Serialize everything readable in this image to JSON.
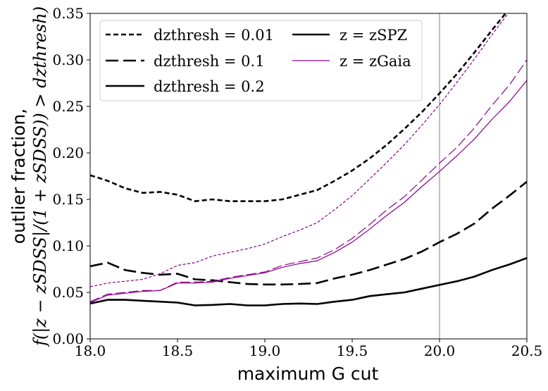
{
  "chart_data": {
    "type": "line",
    "xlabel": "maximum G cut",
    "ylabel_line1": "outlier fraction,",
    "ylabel_line2": "f(|z − zSDSS|/(1 + zSDSS)) > dzthresh)",
    "xlim": [
      18.0,
      20.5
    ],
    "ylim": [
      0.0,
      0.35
    ],
    "x_ticks": [
      "18.0",
      "18.5",
      "19.0",
      "19.5",
      "20.0",
      "20.5"
    ],
    "y_ticks": [
      "0.00",
      "0.05",
      "0.10",
      "0.15",
      "0.20",
      "0.25",
      "0.30",
      "0.35"
    ],
    "vline_x": 20.0,
    "vline_color": "#808080",
    "legend_placement": "top",
    "legend": [
      {
        "label": "dzthresh = 0.01",
        "style": "dotted",
        "color": "#000000"
      },
      {
        "label": "dzthresh = 0.1",
        "style": "dashed",
        "color": "#000000"
      },
      {
        "label": "dzthresh = 0.2",
        "style": "solid",
        "color": "#000000"
      },
      {
        "label": "z = zSPZ",
        "style": "solid-thick",
        "color": "#000000"
      },
      {
        "label": "z = zGaia",
        "style": "solid-thin",
        "color": "#8B008B"
      }
    ],
    "series": [
      {
        "method": "SPZ",
        "dz": 0.01,
        "color": "#000000",
        "x": [
          18.0,
          18.1,
          18.2,
          18.3,
          18.4,
          18.5,
          18.6,
          18.7,
          18.8,
          18.9,
          19.0,
          19.1,
          19.2,
          19.3,
          19.4,
          19.5,
          19.6,
          19.7,
          19.8,
          19.9,
          20.0,
          20.1,
          20.2,
          20.3,
          20.4
        ],
        "y": [
          0.176,
          0.17,
          0.162,
          0.157,
          0.158,
          0.155,
          0.148,
          0.15,
          0.148,
          0.148,
          0.148,
          0.15,
          0.155,
          0.16,
          0.17,
          0.181,
          0.194,
          0.209,
          0.226,
          0.244,
          0.264,
          0.285,
          0.308,
          0.332,
          0.355
        ]
      },
      {
        "method": "SPZ",
        "dz": 0.1,
        "color": "#000000",
        "x": [
          18.0,
          18.1,
          18.2,
          18.3,
          18.4,
          18.5,
          18.6,
          18.7,
          18.8,
          18.9,
          19.0,
          19.1,
          19.2,
          19.3,
          19.4,
          19.5,
          19.6,
          19.7,
          19.8,
          19.9,
          20.0,
          20.1,
          20.2,
          20.3,
          20.4,
          20.5
        ],
        "y": [
          0.078,
          0.082,
          0.074,
          0.071,
          0.069,
          0.07,
          0.064,
          0.063,
          0.061,
          0.059,
          0.0585,
          0.0585,
          0.059,
          0.06,
          0.065,
          0.069,
          0.074,
          0.08,
          0.086,
          0.094,
          0.104,
          0.113,
          0.124,
          0.14,
          0.154,
          0.169
        ]
      },
      {
        "method": "SPZ",
        "dz": 0.2,
        "color": "#000000",
        "x": [
          18.0,
          18.1,
          18.2,
          18.3,
          18.4,
          18.5,
          18.6,
          18.7,
          18.8,
          18.9,
          19.0,
          19.1,
          19.2,
          19.3,
          19.4,
          19.5,
          19.6,
          19.7,
          19.8,
          19.9,
          20.0,
          20.1,
          20.2,
          20.3,
          20.4,
          20.5
        ],
        "y": [
          0.038,
          0.042,
          0.042,
          0.041,
          0.04,
          0.039,
          0.036,
          0.0365,
          0.0375,
          0.036,
          0.036,
          0.0375,
          0.038,
          0.0375,
          0.04,
          0.042,
          0.046,
          0.048,
          0.05,
          0.054,
          0.058,
          0.062,
          0.067,
          0.074,
          0.08,
          0.087
        ]
      },
      {
        "method": "Gaia",
        "dz": 0.01,
        "color": "#8B008B",
        "x": [
          18.0,
          18.1,
          18.2,
          18.3,
          18.4,
          18.5,
          18.6,
          18.7,
          18.8,
          18.9,
          19.0,
          19.1,
          19.2,
          19.3,
          19.4,
          19.5,
          19.6,
          19.7,
          19.8,
          19.9,
          20.0,
          20.1,
          20.2,
          20.3,
          20.4
        ],
        "y": [
          0.056,
          0.06,
          0.062,
          0.064,
          0.07,
          0.079,
          0.082,
          0.089,
          0.093,
          0.097,
          0.102,
          0.11,
          0.117,
          0.125,
          0.139,
          0.154,
          0.172,
          0.19,
          0.209,
          0.23,
          0.252,
          0.276,
          0.301,
          0.327,
          0.352
        ]
      },
      {
        "method": "Gaia",
        "dz": 0.1,
        "color": "#8B008B",
        "x": [
          18.0,
          18.1,
          18.2,
          18.3,
          18.4,
          18.5,
          18.6,
          18.7,
          18.8,
          18.9,
          19.0,
          19.1,
          19.2,
          19.3,
          19.4,
          19.5,
          19.6,
          19.7,
          19.8,
          19.9,
          20.0,
          20.1,
          20.2,
          20.3,
          20.4,
          20.5
        ],
        "y": [
          0.04,
          0.048,
          0.05,
          0.052,
          0.052,
          0.061,
          0.061,
          0.062,
          0.066,
          0.069,
          0.072,
          0.079,
          0.083,
          0.087,
          0.096,
          0.108,
          0.123,
          0.139,
          0.153,
          0.171,
          0.189,
          0.206,
          0.227,
          0.251,
          0.273,
          0.3
        ]
      },
      {
        "method": "Gaia",
        "dz": 0.2,
        "color": "#8B008B",
        "x": [
          18.0,
          18.1,
          18.2,
          18.3,
          18.4,
          18.5,
          18.6,
          18.7,
          18.8,
          18.9,
          19.0,
          19.1,
          19.2,
          19.3,
          19.4,
          19.5,
          19.6,
          19.7,
          19.8,
          19.9,
          20.0,
          20.1,
          20.2,
          20.3,
          20.4,
          20.5
        ],
        "y": [
          0.039,
          0.047,
          0.049,
          0.051,
          0.052,
          0.06,
          0.06,
          0.061,
          0.065,
          0.068,
          0.071,
          0.077,
          0.081,
          0.084,
          0.093,
          0.104,
          0.118,
          0.133,
          0.147,
          0.164,
          0.18,
          0.197,
          0.215,
          0.236,
          0.255,
          0.278
        ]
      }
    ]
  }
}
